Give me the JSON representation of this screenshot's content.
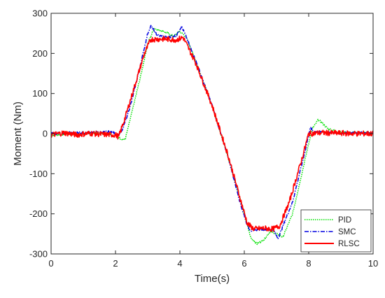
{
  "chart_data": {
    "type": "line",
    "xlabel": "Time(s)",
    "ylabel": "Moment (Nm)",
    "xlim": [
      0,
      10
    ],
    "ylim": [
      -300,
      300
    ],
    "x_ticks": [
      "0",
      "2",
      "4",
      "6",
      "8",
      "10"
    ],
    "y_ticks": [
      "300",
      "200",
      "100",
      "0",
      "-100",
      "-200",
      "-300"
    ],
    "grid": false,
    "legend_position": "bottom-right",
    "series": [
      {
        "name": "PID",
        "color": "#00e000",
        "style": "dotted",
        "x": [
          0,
          0.5,
          1.0,
          1.5,
          2.0,
          2.15,
          2.3,
          2.5,
          2.8,
          3.0,
          3.2,
          3.5,
          3.8,
          4.0,
          4.2,
          4.5,
          5.0,
          5.5,
          5.9,
          6.2,
          6.4,
          6.6,
          6.8,
          7.0,
          7.2,
          7.5,
          7.9,
          8.1,
          8.3,
          8.6,
          9.0,
          9.5,
          10.0
        ],
        "y": [
          -5,
          -2,
          0,
          2,
          -5,
          -12,
          -15,
          50,
          150,
          225,
          262,
          255,
          243,
          255,
          240,
          180,
          70,
          -60,
          -170,
          -260,
          -275,
          -265,
          -245,
          -250,
          -258,
          -200,
          -60,
          10,
          35,
          12,
          3,
          2,
          2
        ]
      },
      {
        "name": "SMC",
        "color": "#0000e0",
        "style": "dashdot",
        "x": [
          0,
          0.5,
          1.0,
          1.5,
          1.9,
          2.05,
          2.2,
          2.5,
          2.8,
          3.0,
          3.1,
          3.3,
          3.6,
          3.9,
          4.05,
          4.2,
          4.5,
          5.0,
          5.5,
          5.9,
          6.1,
          6.2,
          6.5,
          6.9,
          7.05,
          7.2,
          7.5,
          7.9,
          8.05,
          8.15,
          8.5,
          9.0,
          9.5,
          10.0
        ],
        "y": [
          0,
          2,
          2,
          3,
          5,
          -5,
          5,
          80,
          180,
          250,
          268,
          245,
          240,
          245,
          268,
          240,
          180,
          70,
          -60,
          -180,
          -230,
          -242,
          -238,
          -240,
          -262,
          -230,
          -170,
          -40,
          15,
          5,
          3,
          2,
          2,
          2
        ]
      },
      {
        "name": "RLSC",
        "color": "#ff0000",
        "style": "solid",
        "x": [
          0,
          0.4,
          0.8,
          1.2,
          1.6,
          2.0,
          2.1,
          2.3,
          2.6,
          2.9,
          3.1,
          3.5,
          3.9,
          4.1,
          4.5,
          5.0,
          5.5,
          5.9,
          6.1,
          6.3,
          6.6,
          6.9,
          7.1,
          7.4,
          7.8,
          8.0,
          8.4,
          9.0,
          9.5,
          10.0
        ],
        "y": [
          -3,
          2,
          -3,
          1,
          -2,
          -3,
          -8,
          40,
          120,
          200,
          235,
          236,
          234,
          240,
          175,
          70,
          -55,
          -170,
          -225,
          -238,
          -236,
          -238,
          -230,
          -170,
          -60,
          0,
          2,
          1,
          0,
          0
        ]
      }
    ]
  }
}
